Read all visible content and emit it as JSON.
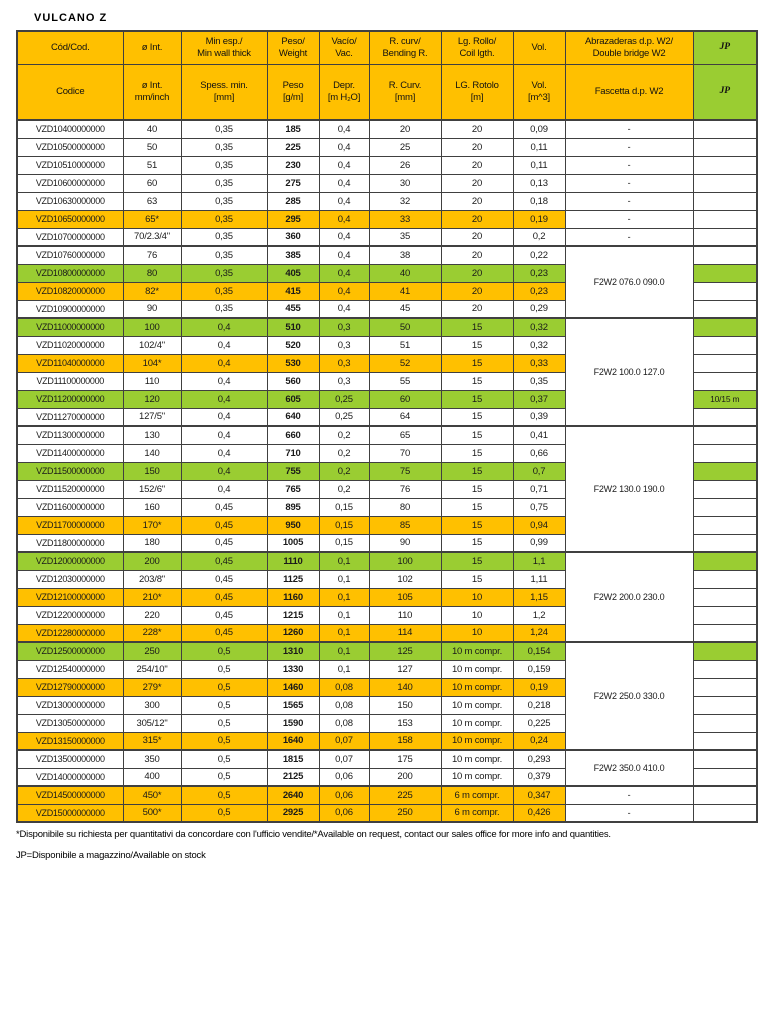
{
  "title": "VULCANO Z",
  "colors": {
    "header_orange": "#FFC000",
    "highlight_green": "#9ACD32",
    "highlight_orange": "#FFC000",
    "border": "#404040"
  },
  "header": {
    "row1": {
      "code": "Cód/Cod.",
      "diameter": "ø Int.",
      "wall": "Min esp./\nMin wall thick",
      "weight": "Peso/\nWeight",
      "vacuum": "Vacío/\nVac.",
      "bend": "R. curv/\nBending R.",
      "coil": "Lg. Rollo/\nCoil lgth.",
      "volume": "Vol.",
      "clamp": "Abrazaderas d.p. W2/\nDouble bridge W2",
      "jp": "JP"
    },
    "row2": {
      "code": "Codice",
      "diameter": "ø Int.\nmm/inch",
      "wall": "Spess. min.\n[mm]",
      "weight": "Peso\n[g/m]",
      "vacuum": "Depr.\n[m H₂O]",
      "bend": "R. Curv.\n[mm]",
      "coil": "LG. Rotolo\n[m]",
      "volume": "Vol.\n[m^3]",
      "clamp": "Fascetta d.p. W2",
      "jp": "JP"
    }
  },
  "rows": [
    {
      "code": "VZD10400000000",
      "diameter": "40",
      "wall": "0,35",
      "weight": "185",
      "vacuum": "0,4",
      "bend": "20",
      "coil": "20",
      "volume": "0,09",
      "highlight": "none",
      "clamp": {
        "text": "-",
        "span": 1
      },
      "jp_green": false,
      "jp_text": "",
      "group_start": false
    },
    {
      "code": "VZD10500000000",
      "diameter": "50",
      "wall": "0,35",
      "weight": "225",
      "vacuum": "0,4",
      "bend": "25",
      "coil": "20",
      "volume": "0,11",
      "highlight": "none",
      "clamp": {
        "text": "-",
        "span": 1
      },
      "jp_green": false,
      "jp_text": "",
      "group_start": false
    },
    {
      "code": "VZD10510000000",
      "diameter": "51",
      "wall": "0,35",
      "weight": "230",
      "vacuum": "0,4",
      "bend": "26",
      "coil": "20",
      "volume": "0,11",
      "highlight": "none",
      "clamp": {
        "text": "-",
        "span": 1
      },
      "jp_green": false,
      "jp_text": "",
      "group_start": false
    },
    {
      "code": "VZD10600000000",
      "diameter": "60",
      "wall": "0,35",
      "weight": "275",
      "vacuum": "0,4",
      "bend": "30",
      "coil": "20",
      "volume": "0,13",
      "highlight": "none",
      "clamp": {
        "text": "-",
        "span": 1
      },
      "jp_green": false,
      "jp_text": "",
      "group_start": false
    },
    {
      "code": "VZD10630000000",
      "diameter": "63",
      "wall": "0,35",
      "weight": "285",
      "vacuum": "0,4",
      "bend": "32",
      "coil": "20",
      "volume": "0,18",
      "highlight": "none",
      "clamp": {
        "text": "-",
        "span": 1
      },
      "jp_green": false,
      "jp_text": "",
      "group_start": false
    },
    {
      "code": "VZD10650000000",
      "diameter": "65*",
      "wall": "0,35",
      "weight": "295",
      "vacuum": "0,4",
      "bend": "33",
      "coil": "20",
      "volume": "0,19",
      "highlight": "orange",
      "clamp": {
        "text": "-",
        "span": 1
      },
      "jp_green": false,
      "jp_text": "",
      "group_start": false
    },
    {
      "code": "VZD10700000000",
      "diameter": "70/2.3/4\"",
      "wall": "0,35",
      "weight": "360",
      "vacuum": "0,4",
      "bend": "35",
      "coil": "20",
      "volume": "0,2",
      "highlight": "none",
      "clamp": {
        "text": "-",
        "span": 1
      },
      "jp_green": false,
      "jp_text": "",
      "group_start": false
    },
    {
      "code": "VZD10760000000",
      "diameter": "76",
      "wall": "0,35",
      "weight": "385",
      "vacuum": "0,4",
      "bend": "38",
      "coil": "20",
      "volume": "0,22",
      "highlight": "none",
      "clamp": {
        "text": "F2W2 076.0 090.0",
        "span": 4
      },
      "jp_green": false,
      "jp_text": "",
      "group_start": true
    },
    {
      "code": "VZD10800000000",
      "diameter": "80",
      "wall": "0,35",
      "weight": "405",
      "vacuum": "0,4",
      "bend": "40",
      "coil": "20",
      "volume": "0,23",
      "highlight": "green",
      "clamp": null,
      "jp_green": true,
      "jp_text": "",
      "group_start": false
    },
    {
      "code": "VZD10820000000",
      "diameter": "82*",
      "wall": "0,35",
      "weight": "415",
      "vacuum": "0,4",
      "bend": "41",
      "coil": "20",
      "volume": "0,23",
      "highlight": "orange",
      "clamp": null,
      "jp_green": false,
      "jp_text": "",
      "group_start": false
    },
    {
      "code": "VZD10900000000",
      "diameter": "90",
      "wall": "0,35",
      "weight": "455",
      "vacuum": "0,4",
      "bend": "45",
      "coil": "20",
      "volume": "0,29",
      "highlight": "none",
      "clamp": null,
      "jp_green": false,
      "jp_text": "",
      "group_start": false
    },
    {
      "code": "VZD11000000000",
      "diameter": "100",
      "wall": "0,4",
      "weight": "510",
      "vacuum": "0,3",
      "bend": "50",
      "coil": "15",
      "volume": "0,32",
      "highlight": "green",
      "clamp": {
        "text": "F2W2 100.0 127.0",
        "span": 6
      },
      "jp_green": true,
      "jp_text": "",
      "group_start": true
    },
    {
      "code": "VZD11020000000",
      "diameter": "102/4\"",
      "wall": "0,4",
      "weight": "520",
      "vacuum": "0,3",
      "bend": "51",
      "coil": "15",
      "volume": "0,32",
      "highlight": "none",
      "clamp": null,
      "jp_green": false,
      "jp_text": "",
      "group_start": false
    },
    {
      "code": "VZD11040000000",
      "diameter": "104*",
      "wall": "0,4",
      "weight": "530",
      "vacuum": "0,3",
      "bend": "52",
      "coil": "15",
      "volume": "0,33",
      "highlight": "orange",
      "clamp": null,
      "jp_green": false,
      "jp_text": "",
      "group_start": false
    },
    {
      "code": "VZD11100000000",
      "diameter": "110",
      "wall": "0,4",
      "weight": "560",
      "vacuum": "0,3",
      "bend": "55",
      "coil": "15",
      "volume": "0,35",
      "highlight": "none",
      "clamp": null,
      "jp_green": false,
      "jp_text": "",
      "group_start": false
    },
    {
      "code": "VZD11200000000",
      "diameter": "120",
      "wall": "0,4",
      "weight": "605",
      "vacuum": "0,25",
      "bend": "60",
      "coil": "15",
      "volume": "0,37",
      "highlight": "green",
      "clamp": null,
      "jp_green": true,
      "jp_text": "10/15 m",
      "group_start": false
    },
    {
      "code": "VZD11270000000",
      "diameter": "127/5\"",
      "wall": "0,4",
      "weight": "640",
      "vacuum": "0,25",
      "bend": "64",
      "coil": "15",
      "volume": "0,39",
      "highlight": "none",
      "clamp": null,
      "jp_green": false,
      "jp_text": "",
      "group_start": false
    },
    {
      "code": "VZD11300000000",
      "diameter": "130",
      "wall": "0,4",
      "weight": "660",
      "vacuum": "0,2",
      "bend": "65",
      "coil": "15",
      "volume": "0,41",
      "highlight": "none",
      "clamp": {
        "text": "F2W2 130.0 190.0",
        "span": 7
      },
      "jp_green": false,
      "jp_text": "",
      "group_start": true
    },
    {
      "code": "VZD11400000000",
      "diameter": "140",
      "wall": "0,4",
      "weight": "710",
      "vacuum": "0,2",
      "bend": "70",
      "coil": "15",
      "volume": "0,66",
      "highlight": "none",
      "clamp": null,
      "jp_green": false,
      "jp_text": "",
      "group_start": false
    },
    {
      "code": "VZD11500000000",
      "diameter": "150",
      "wall": "0,4",
      "weight": "755",
      "vacuum": "0,2",
      "bend": "75",
      "coil": "15",
      "volume": "0,7",
      "highlight": "green",
      "clamp": null,
      "jp_green": true,
      "jp_text": "",
      "group_start": false
    },
    {
      "code": "VZD11520000000",
      "diameter": "152/6\"",
      "wall": "0,4",
      "weight": "765",
      "vacuum": "0,2",
      "bend": "76",
      "coil": "15",
      "volume": "0,71",
      "highlight": "none",
      "clamp": null,
      "jp_green": false,
      "jp_text": "",
      "group_start": false
    },
    {
      "code": "VZD11600000000",
      "diameter": "160",
      "wall": "0,45",
      "weight": "895",
      "vacuum": "0,15",
      "bend": "80",
      "coil": "15",
      "volume": "0,75",
      "highlight": "none",
      "clamp": null,
      "jp_green": false,
      "jp_text": "",
      "group_start": false
    },
    {
      "code": "VZD11700000000",
      "diameter": "170*",
      "wall": "0,45",
      "weight": "950",
      "vacuum": "0,15",
      "bend": "85",
      "coil": "15",
      "volume": "0,94",
      "highlight": "orange",
      "clamp": null,
      "jp_green": false,
      "jp_text": "",
      "group_start": false
    },
    {
      "code": "VZD11800000000",
      "diameter": "180",
      "wall": "0,45",
      "weight": "1005",
      "vacuum": "0,15",
      "bend": "90",
      "coil": "15",
      "volume": "0,99",
      "highlight": "none",
      "clamp": null,
      "jp_green": false,
      "jp_text": "",
      "group_start": false
    },
    {
      "code": "VZD12000000000",
      "diameter": "200",
      "wall": "0,45",
      "weight": "1110",
      "vacuum": "0,1",
      "bend": "100",
      "coil": "15",
      "volume": "1,1",
      "highlight": "green",
      "clamp": {
        "text": "F2W2 200.0 230.0",
        "span": 5
      },
      "jp_green": true,
      "jp_text": "",
      "group_start": true
    },
    {
      "code": "VZD12030000000",
      "diameter": "203/8\"",
      "wall": "0,45",
      "weight": "1125",
      "vacuum": "0,1",
      "bend": "102",
      "coil": "15",
      "volume": "1,11",
      "highlight": "none",
      "clamp": null,
      "jp_green": false,
      "jp_text": "",
      "group_start": false
    },
    {
      "code": "VZD12100000000",
      "diameter": "210*",
      "wall": "0,45",
      "weight": "1160",
      "vacuum": "0,1",
      "bend": "105",
      "coil": "10",
      "volume": "1,15",
      "highlight": "orange",
      "clamp": null,
      "jp_green": false,
      "jp_text": "",
      "group_start": false
    },
    {
      "code": "VZD12200000000",
      "diameter": "220",
      "wall": "0,45",
      "weight": "1215",
      "vacuum": "0,1",
      "bend": "110",
      "coil": "10",
      "volume": "1,2",
      "highlight": "none",
      "clamp": null,
      "jp_green": false,
      "jp_text": "",
      "group_start": false
    },
    {
      "code": "VZD12280000000",
      "diameter": "228*",
      "wall": "0,45",
      "weight": "1260",
      "vacuum": "0,1",
      "bend": "114",
      "coil": "10",
      "volume": "1,24",
      "highlight": "orange",
      "clamp": null,
      "jp_green": false,
      "jp_text": "",
      "group_start": false
    },
    {
      "code": "VZD12500000000",
      "diameter": "250",
      "wall": "0,5",
      "weight": "1310",
      "vacuum": "0,1",
      "bend": "125",
      "coil": "10 m compr.",
      "volume": "0,154",
      "highlight": "green",
      "clamp": {
        "text": "F2W2 250.0 330.0",
        "span": 6
      },
      "jp_green": true,
      "jp_text": "",
      "group_start": true
    },
    {
      "code": "VZD12540000000",
      "diameter": "254/10\"",
      "wall": "0,5",
      "weight": "1330",
      "vacuum": "0,1",
      "bend": "127",
      "coil": "10 m compr.",
      "volume": "0,159",
      "highlight": "none",
      "clamp": null,
      "jp_green": false,
      "jp_text": "",
      "group_start": false
    },
    {
      "code": "VZD12790000000",
      "diameter": "279*",
      "wall": "0,5",
      "weight": "1460",
      "vacuum": "0,08",
      "bend": "140",
      "coil": "10 m compr.",
      "volume": "0,19",
      "highlight": "orange",
      "clamp": null,
      "jp_green": false,
      "jp_text": "",
      "group_start": false
    },
    {
      "code": "VZD13000000000",
      "diameter": "300",
      "wall": "0,5",
      "weight": "1565",
      "vacuum": "0,08",
      "bend": "150",
      "coil": "10 m compr.",
      "volume": "0,218",
      "highlight": "none",
      "clamp": null,
      "jp_green": false,
      "jp_text": "",
      "group_start": false
    },
    {
      "code": "VZD13050000000",
      "diameter": "305/12\"",
      "wall": "0,5",
      "weight": "1590",
      "vacuum": "0,08",
      "bend": "153",
      "coil": "10 m compr.",
      "volume": "0,225",
      "highlight": "none",
      "clamp": null,
      "jp_green": false,
      "jp_text": "",
      "group_start": false
    },
    {
      "code": "VZD13150000000",
      "diameter": "315*",
      "wall": "0,5",
      "weight": "1640",
      "vacuum": "0,07",
      "bend": "158",
      "coil": "10 m compr.",
      "volume": "0,24",
      "highlight": "orange",
      "clamp": null,
      "jp_green": false,
      "jp_text": "",
      "group_start": false
    },
    {
      "code": "VZD13500000000",
      "diameter": "350",
      "wall": "0,5",
      "weight": "1815",
      "vacuum": "0,07",
      "bend": "175",
      "coil": "10 m compr.",
      "volume": "0,293",
      "highlight": "none",
      "clamp": {
        "text": "F2W2 350.0 410.0",
        "span": 2
      },
      "jp_green": false,
      "jp_text": "",
      "group_start": true
    },
    {
      "code": "VZD14000000000",
      "diameter": "400",
      "wall": "0,5",
      "weight": "2125",
      "vacuum": "0,06",
      "bend": "200",
      "coil": "10 m compr.",
      "volume": "0,379",
      "highlight": "none",
      "clamp": null,
      "jp_green": false,
      "jp_text": "",
      "group_start": false
    },
    {
      "code": "VZD14500000000",
      "diameter": "450*",
      "wall": "0,5",
      "weight": "2640",
      "vacuum": "0,06",
      "bend": "225",
      "coil": "6 m compr.",
      "volume": "0,347",
      "highlight": "orange",
      "clamp": {
        "text": "-",
        "span": 1
      },
      "jp_green": false,
      "jp_text": "",
      "group_start": true
    },
    {
      "code": "VZD15000000000",
      "diameter": "500*",
      "wall": "0,5",
      "weight": "2925",
      "vacuum": "0,06",
      "bend": "250",
      "coil": "6 m compr.",
      "volume": "0,426",
      "highlight": "orange",
      "clamp": {
        "text": "-",
        "span": 1
      },
      "jp_green": false,
      "jp_text": "",
      "group_start": false
    }
  ],
  "footnotes": [
    "*Disponibile su richiesta per quantitativi da concordare con l'ufficio vendite/*Available on request, contact our sales office for more info and quantities.",
    "JP=Disponibile a magazzino/Available on stock"
  ]
}
